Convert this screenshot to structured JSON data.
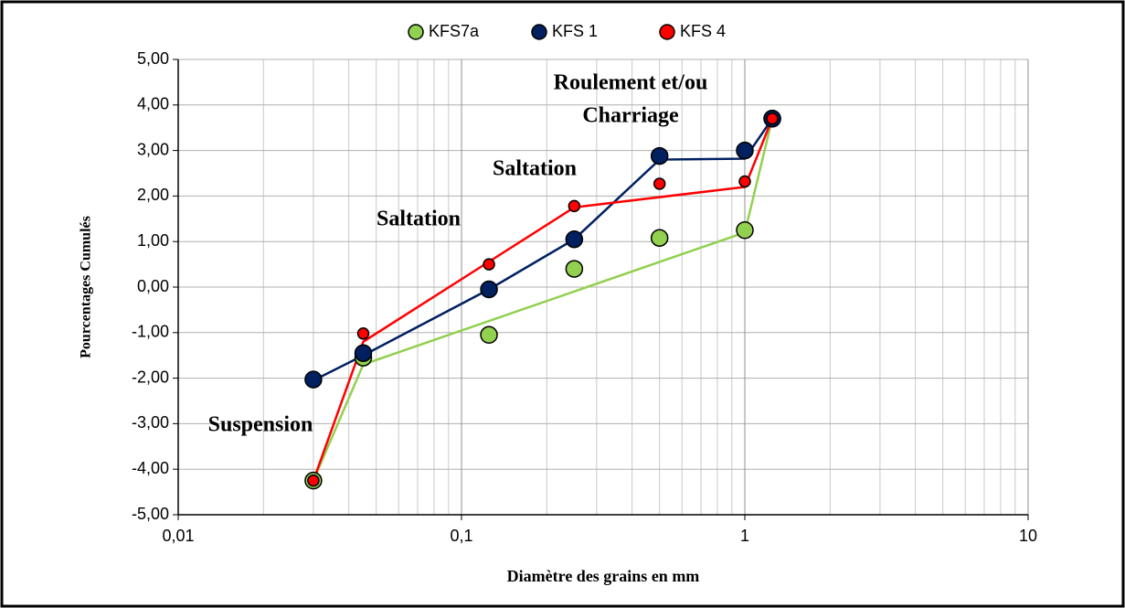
{
  "chart_data": {
    "type": "scatter",
    "xlabel": "Diamètre des grains en mm",
    "ylabel": "Pourcentages Cumulés",
    "xscale": "log",
    "grid": true,
    "legend": "top",
    "xlim": [
      0.01,
      10
    ],
    "xticks": [
      {
        "value": 0.01,
        "label": "0,01"
      },
      {
        "value": 0.1,
        "label": "0,1"
      },
      1,
      10
    ],
    "ylim": [
      -5,
      5
    ],
    "yticks": [
      {
        "value": -5,
        "label": "-5,00"
      },
      {
        "value": -4,
        "label": "-4,00"
      },
      {
        "value": -3,
        "label": "-3,00"
      },
      {
        "value": -2,
        "label": "-2,00"
      },
      {
        "value": -1,
        "label": "-1,00"
      },
      {
        "value": 0,
        "label": "0,00"
      },
      {
        "value": 1,
        "label": "1,00"
      },
      {
        "value": 2,
        "label": "2,00"
      },
      {
        "value": 3,
        "label": "3,00"
      },
      {
        "value": 4,
        "label": "4,00"
      },
      {
        "value": 5,
        "label": "5,00"
      }
    ],
    "series": [
      {
        "name": "KFS7a",
        "color": "#92d050",
        "x": [
          0.03,
          0.045,
          0.125,
          0.25,
          0.5,
          1,
          1.25
        ],
        "values": [
          -4.25,
          -1.55,
          -1.05,
          0.4,
          1.08,
          1.25,
          3.7
        ]
      },
      {
        "name": "KFS 1",
        "color": "#002060",
        "x": [
          0.03,
          0.045,
          0.125,
          0.25,
          0.5,
          1,
          1.25
        ],
        "values": [
          -2.03,
          -1.45,
          -0.05,
          1.05,
          2.88,
          3.0,
          3.7
        ]
      },
      {
        "name": "KFS 4",
        "color": "#ff0000",
        "x": [
          0.03,
          0.045,
          0.125,
          0.25,
          0.5,
          1,
          1.25
        ],
        "values": [
          -4.25,
          -1.02,
          0.5,
          1.78,
          2.27,
          2.32,
          3.7
        ]
      }
    ],
    "lines": [
      {
        "color": "#92d050",
        "x": [
          0.03,
          0.045,
          1,
          1.25
        ],
        "values": [
          -4.25,
          -1.7,
          1.2,
          3.7
        ]
      },
      {
        "color": "#002060",
        "x": [
          0.03,
          0.045,
          0.125,
          0.25,
          0.5,
          1,
          1.25
        ],
        "values": [
          -2.05,
          -1.5,
          -0.05,
          1.05,
          2.8,
          2.82,
          3.7
        ]
      },
      {
        "color": "#ff0000",
        "x": [
          0.03,
          0.045,
          0.25,
          1,
          1.25
        ],
        "values": [
          -4.25,
          -1.2,
          1.75,
          2.2,
          3.7
        ]
      }
    ],
    "annotations": [
      "Roulement  et/ou",
      "Charriage",
      "Saltation",
      "Saltation",
      "Suspension"
    ]
  }
}
